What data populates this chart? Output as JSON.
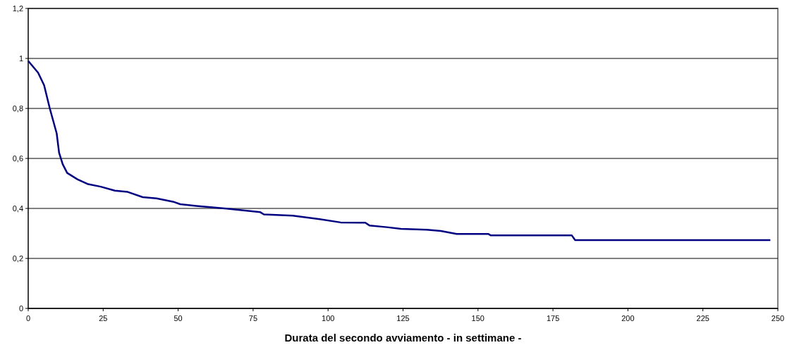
{
  "chart_data": {
    "type": "line",
    "xlabel": "Durata del secondo avviamento - in settimane -",
    "xlim": [
      0,
      250
    ],
    "xticks": [
      0,
      25,
      50,
      75,
      100,
      125,
      150,
      175,
      200,
      225,
      250
    ],
    "ylim": [
      0,
      1.2
    ],
    "yticks": [
      0,
      {
        "value": 0.2,
        "label": "0,2"
      },
      {
        "value": 0.4,
        "label": "0,4"
      },
      {
        "value": 0.6,
        "label": "0,6"
      },
      {
        "value": 0.8,
        "label": "0,8"
      },
      1,
      {
        "value": 1.2,
        "label": "1,2"
      }
    ],
    "grid": "y",
    "marker": "none",
    "line_style": "solid",
    "series": [
      {
        "color": "#000080",
        "x": [
          0,
          3.3,
          5.3,
          7.2,
          9.5,
          10.3,
          11.5,
          13.0,
          16.5,
          20.0,
          24.2,
          28.9,
          33.2,
          38.2,
          42.8,
          48.3,
          50.7,
          56.1,
          60.8,
          66.1,
          77.4,
          78.6,
          88.2,
          97.2,
          104.2,
          112.4,
          113.8,
          119.6,
          124.3,
          132.9,
          137.6,
          142.9,
          153.4,
          154.3,
          181.3,
          182.4,
          247.5
        ],
        "values": [
          0.99,
          0.943,
          0.893,
          0.8,
          0.7,
          0.623,
          0.577,
          0.542,
          0.516,
          0.497,
          0.487,
          0.471,
          0.466,
          0.445,
          0.44,
          0.427,
          0.417,
          0.41,
          0.405,
          0.399,
          0.385,
          0.376,
          0.371,
          0.357,
          0.344,
          0.343,
          0.332,
          0.325,
          0.318,
          0.315,
          0.31,
          0.298,
          0.298,
          0.292,
          0.292,
          0.273,
          0.273
        ]
      }
    ]
  }
}
